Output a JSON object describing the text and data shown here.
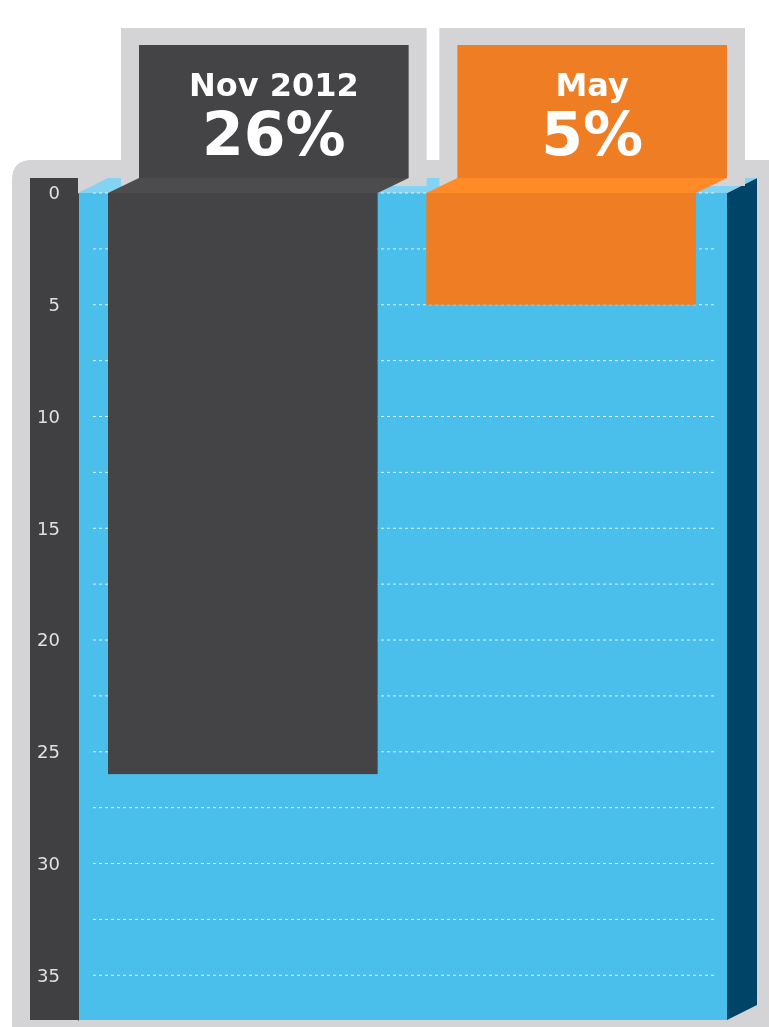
{
  "chart_data": {
    "type": "bar",
    "categories": [
      "Nov 2012",
      "May"
    ],
    "values": [
      26,
      5
    ],
    "colors": [
      "#444446",
      "#ee7d24"
    ],
    "value_labels": [
      "26%",
      "5%"
    ],
    "ylim": [
      37,
      0
    ],
    "yticks": [
      0,
      {
        "value": 2.5,
        "label": null
      },
      5,
      {
        "value": 7.5,
        "label": null
      },
      10,
      {
        "value": 12.5,
        "label": null
      },
      15,
      {
        "value": 17.5,
        "label": null
      },
      20,
      {
        "value": 22.5,
        "label": null
      },
      25,
      {
        "value": 27.5,
        "label": null
      },
      30,
      {
        "value": 32.5,
        "label": null
      },
      35
    ],
    "grid": true
  }
}
